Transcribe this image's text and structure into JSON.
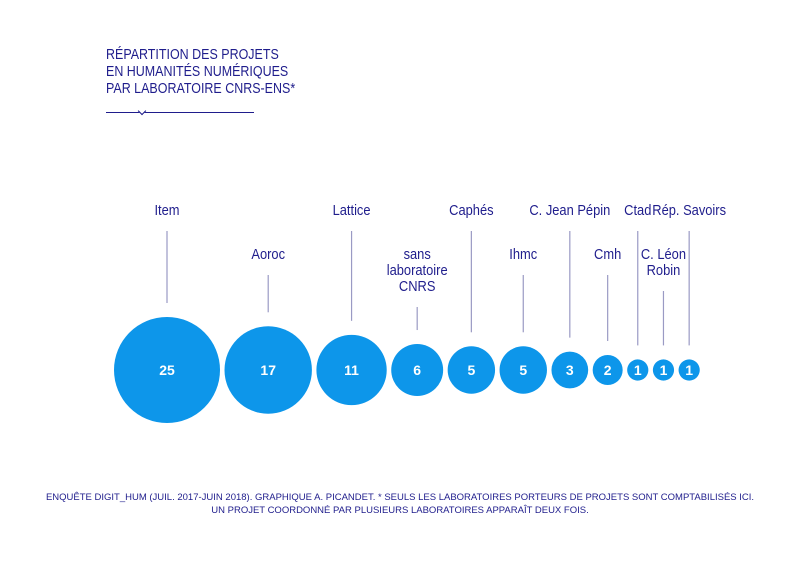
{
  "title_lines": [
    "RÉPARTITION DES PROJETS",
    "EN HUMANITÉS NUMÉRIQUES",
    "PAR LABORATOIRE CNRS-ENS*"
  ],
  "footer_lines": [
    "ENQUÊTE DIGIT_HUM (JUIL. 2017-JUIN 2018). GRAPHIQUE A. PICANDET. * SEULS LES LABORATOIRES PORTEURS DE PROJETS SONT COMPTABILISÉS ICI.",
    "UN PROJET COORDONNÉ PAR PLUSIEURS LABORATOIRES APPARAÎT DEUX FOIS."
  ],
  "colors": {
    "bubble": "#0d96ea",
    "text": "#1f1d8c",
    "leader_line": "#9a9ac4",
    "value_text": "#ffffff"
  },
  "chart_data": {
    "type": "bubble",
    "title": "RÉPARTITION DES PROJETS EN HUMANITÉS NUMÉRIQUES PAR LABORATOIRE CNRS-ENS*",
    "categories": [
      "Item",
      "Aoroc",
      "Lattice",
      "sans laboratoire CNRS",
      "Caphés",
      "Ihmc",
      "C. Jean Pépin",
      "Cmh",
      "Ctad",
      "C. Léon Robin",
      "Rép. Savoirs"
    ],
    "label_lines": [
      [
        "Item"
      ],
      [
        "Aoroc"
      ],
      [
        "Lattice"
      ],
      [
        "sans",
        "laboratoire",
        "CNRS"
      ],
      [
        "Caphés"
      ],
      [
        "Ihmc"
      ],
      [
        "C. Jean Pépin"
      ],
      [
        "Cmh"
      ],
      [
        "Ctad"
      ],
      [
        "C. Léon",
        "Robin"
      ],
      [
        "Rép. Savoirs"
      ]
    ],
    "values": [
      25,
      17,
      11,
      6,
      5,
      5,
      3,
      2,
      1,
      1,
      1
    ],
    "label_rows": [
      "high",
      "low",
      "high",
      "low",
      "high",
      "low",
      "high",
      "low",
      "high",
      "low",
      "high"
    ]
  }
}
